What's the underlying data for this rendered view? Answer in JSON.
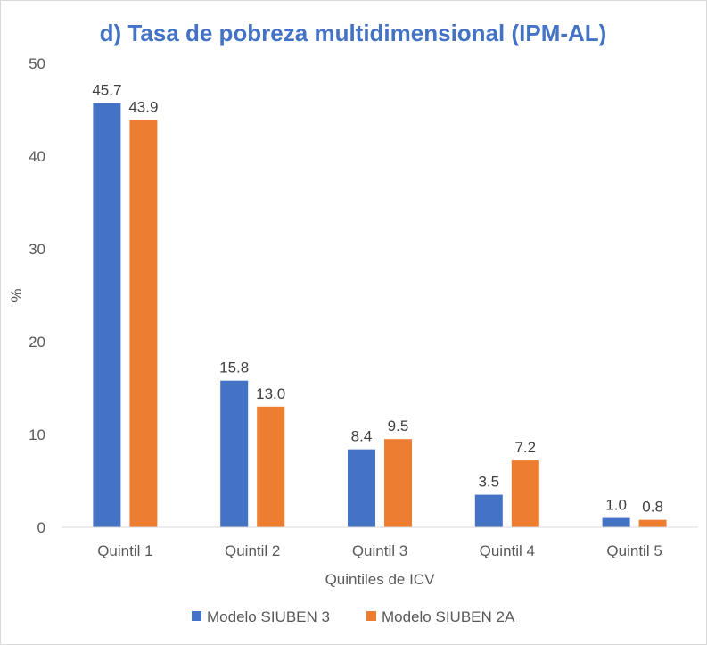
{
  "chart_data": {
    "type": "bar",
    "title": "d) Tasa de pobreza multidimensional (IPM-AL)",
    "xlabel": "Quintiles de ICV",
    "ylabel": "%",
    "ylim": [
      0,
      50
    ],
    "yticks": [
      0,
      10,
      20,
      30,
      40,
      50
    ],
    "grid": false,
    "legend_position": "bottom",
    "categories": [
      "Quintil 1",
      "Quintil 2",
      "Quintil 3",
      "Quintil 4",
      "Quintil 5"
    ],
    "series": [
      {
        "name": "Modelo SIUBEN 3",
        "color": "#4472C4",
        "values": [
          45.7,
          15.8,
          8.4,
          3.5,
          1.0
        ],
        "labels": [
          "45.7",
          "15.8",
          "8.4",
          "3.5",
          "1.0"
        ]
      },
      {
        "name": "Modelo SIUBEN 2A",
        "color": "#ED7D31",
        "values": [
          43.9,
          13.0,
          9.5,
          7.2,
          0.8
        ],
        "labels": [
          "43.9",
          "13.0",
          "9.5",
          "7.2",
          "0.8"
        ]
      }
    ]
  },
  "colors": {
    "title": "#4472C4",
    "axis_line": "#d9d9d9"
  }
}
